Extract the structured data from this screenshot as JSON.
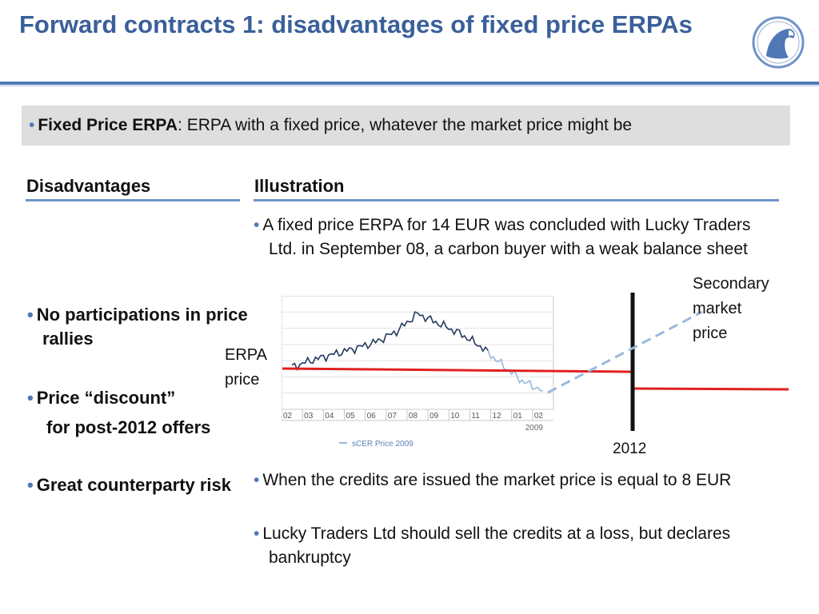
{
  "title": "Forward contracts 1: disadvantages of fixed price ERPAs",
  "definition": {
    "term": "Fixed Price ERPA",
    "text": ": ERPA  with a fixed price, whatever the market price might be"
  },
  "disadvantages": {
    "header": "Disadvantages",
    "items": [
      {
        "label": "No participations in price rallies"
      },
      {
        "label": "Price “discount”",
        "sub": "for post-2012 offers"
      },
      {
        "label": "Great counterparty risk"
      }
    ]
  },
  "illustration": {
    "header": "Illustration",
    "intro": "A fixed price ERPA for 14 EUR was concluded with Lucky Traders Ltd. in September 08, a carbon buyer with a weak balance sheet",
    "bullets": [
      "When the credits are issued the market price is equal to 8 EUR",
      "Lucky Traders Ltd should sell the credits at a loss, but declares bankruptcy"
    ]
  },
  "annotations": {
    "erpa_price": [
      "ERPA",
      "price"
    ],
    "secondary_price": [
      "Secondary",
      "market",
      "price"
    ],
    "year_2012": "2012"
  },
  "chart_data": {
    "type": "line",
    "categories": [
      "02",
      "03",
      "04",
      "05",
      "06",
      "07",
      "08",
      "09",
      "10",
      "11",
      "12",
      "01",
      "02"
    ],
    "year_label": "2009",
    "series": [
      {
        "name": "sCER Price 2009",
        "values": [
          14.2,
          15.1,
          15.8,
          16.5,
          17.3,
          18.6,
          20.8,
          19.6,
          18.4,
          16.8,
          14.6,
          12.5,
          11.3
        ]
      }
    ],
    "grid": true,
    "legend": "bottom"
  },
  "colors": {
    "title": "#3a5f9a",
    "rule": "#4f78b5",
    "erpa_line": "#e02020",
    "market_line": "#9ab8dc",
    "series_line": "#23395d"
  }
}
